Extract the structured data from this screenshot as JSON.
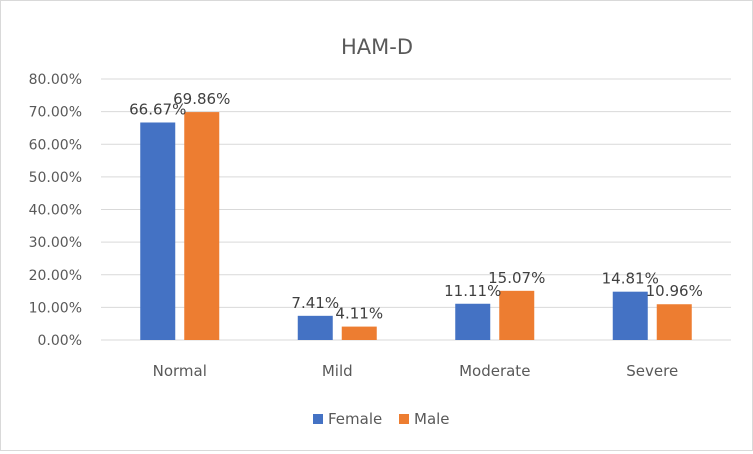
{
  "chart_data": {
    "type": "bar",
    "title": "HAM-D",
    "xlabel": "",
    "ylabel": "",
    "categories": [
      "Normal",
      "Mild",
      "Moderate",
      "Severe"
    ],
    "series": [
      {
        "name": "Female",
        "color": "#4472c4",
        "values": [
          66.67,
          7.41,
          11.11,
          14.81
        ],
        "labels": [
          "66.67%",
          "7.41%",
          "11.11%",
          "14.81%"
        ]
      },
      {
        "name": "Male",
        "color": "#ed7d31",
        "values": [
          69.86,
          4.11,
          15.07,
          10.96
        ],
        "labels": [
          "69.86%",
          "4.11%",
          "15.07%",
          "10.96%"
        ]
      }
    ],
    "ylim": [
      0,
      80
    ],
    "yticks": [
      0,
      10,
      20,
      30,
      40,
      50,
      60,
      70,
      80
    ],
    "ytick_labels": [
      "0.00%",
      "10.00%",
      "20.00%",
      "30.00%",
      "40.00%",
      "50.00%",
      "60.00%",
      "70.00%",
      "80.00%"
    ],
    "grid": true,
    "legend": "bottom"
  }
}
